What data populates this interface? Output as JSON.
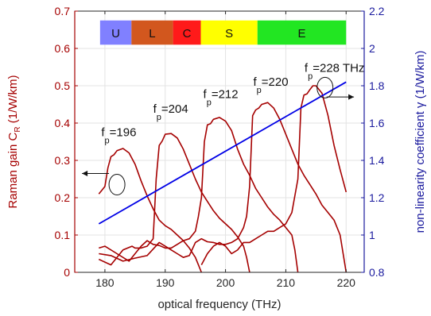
{
  "chart_data": {
    "type": "line",
    "xlabel": "optical frequency (THz)",
    "ylabel_left": "Raman gain C_R (1/W/km)",
    "ylabel_left_main": "Raman gain C",
    "ylabel_left_sub": "R",
    "ylabel_left_units": " (1/W/km)",
    "ylabel_right": "non-linearity coefficient γ (1/W/km)",
    "ylabel_right_main": "non-linearity coefficient γ",
    "ylabel_right_units": " (1/W/km)",
    "xlim": [
      175,
      223
    ],
    "ylim_left": [
      0,
      0.7
    ],
    "ylim_right": [
      0.8,
      2.2
    ],
    "xticks": [
      180,
      190,
      200,
      210,
      220
    ],
    "yticks_left": [
      0,
      0.1,
      0.2,
      0.3,
      0.4,
      0.5,
      0.6,
      0.7
    ],
    "yticks_left_labels": [
      "0",
      "0.1",
      "0.2",
      "0.3",
      "0.4",
      "0.5",
      "0.6",
      "0.7"
    ],
    "yticks_right": [
      0.8,
      1,
      1.2,
      1.4,
      1.6,
      1.8,
      2,
      2.2
    ],
    "yticks_right_labels": [
      "0.8",
      "1",
      "1.2",
      "1.4",
      "1.6",
      "1.8",
      "2",
      "2.2"
    ],
    "grid": true,
    "colors": {
      "raman": "#a50000",
      "gamma": "#0000e6",
      "left_axis": "#a50000",
      "right_axis": "#1a1a9e",
      "grid": "#e3e3e3"
    },
    "bands": [
      {
        "label": "U",
        "x0": 179.2,
        "x1": 184.4,
        "color": "#8080ff"
      },
      {
        "label": "L",
        "x0": 184.4,
        "x1": 191.3,
        "color": "#d2571e"
      },
      {
        "label": "C",
        "x0": 191.3,
        "x1": 195.9,
        "color": "#ff1a1a"
      },
      {
        "label": "S",
        "x0": 195.9,
        "x1": 205.3,
        "color": "#ffff00"
      },
      {
        "label": "E",
        "x0": 205.3,
        "x1": 220.0,
        "color": "#22e622"
      }
    ],
    "gamma_series": {
      "axis": "right",
      "x": [
        179,
        220
      ],
      "y": [
        1.06,
        1.82
      ]
    },
    "raman_series": [
      {
        "pump_label_main": "f",
        "pump_label_sub": "p",
        "pump_label_value": "=196",
        "annot_x": 179.4,
        "annot_y": 0.365,
        "x": [
          179,
          180,
          180.5,
          181,
          181.5,
          182,
          183,
          184,
          185,
          186,
          187,
          188,
          189,
          190,
          191,
          192,
          193,
          194,
          195,
          195.5,
          196
        ],
        "y": [
          0.21,
          0.23,
          0.28,
          0.31,
          0.315,
          0.326,
          0.332,
          0.32,
          0.29,
          0.245,
          0.205,
          0.17,
          0.14,
          0.125,
          0.115,
          0.1,
          0.085,
          0.065,
          0.04,
          0.02,
          0.0
        ]
      },
      {
        "pump_label_main": "f",
        "pump_label_sub": "p",
        "pump_label_value": "=204",
        "annot_x": 188.0,
        "annot_y": 0.428,
        "x": [
          179,
          181,
          183,
          184.5,
          185,
          186,
          187,
          188,
          188.5,
          189,
          189.5,
          190,
          191,
          192,
          193,
          194,
          195,
          196,
          197,
          198,
          199,
          200,
          201,
          202,
          203,
          203.5,
          204
        ],
        "y": [
          0.035,
          0.02,
          0.06,
          0.07,
          0.065,
          0.065,
          0.07,
          0.09,
          0.25,
          0.34,
          0.352,
          0.37,
          0.372,
          0.36,
          0.33,
          0.29,
          0.25,
          0.215,
          0.19,
          0.165,
          0.145,
          0.13,
          0.115,
          0.095,
          0.07,
          0.04,
          0.0
        ]
      },
      {
        "pump_label_main": "f",
        "pump_label_sub": "p",
        "pump_label_value": "=212",
        "annot_x": 196.3,
        "annot_y": 0.467,
        "x": [
          179,
          180,
          182,
          184,
          186,
          187,
          188,
          189,
          190,
          191,
          192,
          193,
          194,
          195,
          195.5,
          196,
          196.5,
          197,
          197.5,
          198,
          199,
          200,
          201,
          202,
          203,
          204,
          205,
          206,
          207,
          208,
          209,
          210,
          211,
          211.5,
          212
        ],
        "y": [
          0.065,
          0.07,
          0.05,
          0.03,
          0.07,
          0.085,
          0.075,
          0.072,
          0.065,
          0.065,
          0.075,
          0.085,
          0.09,
          0.11,
          0.15,
          0.2,
          0.35,
          0.395,
          0.398,
          0.41,
          0.415,
          0.405,
          0.38,
          0.33,
          0.29,
          0.26,
          0.225,
          0.2,
          0.175,
          0.155,
          0.14,
          0.12,
          0.1,
          0.06,
          0.0
        ]
      },
      {
        "pump_label_main": "f",
        "pump_label_sub": "p",
        "pump_label_value": "=220",
        "annot_x": 204.6,
        "annot_y": 0.5,
        "x": [
          179,
          181,
          183,
          185,
          187,
          189,
          190,
          191,
          192,
          193,
          194,
          195,
          196,
          197,
          198,
          199,
          200,
          201,
          202,
          203,
          203.5,
          204,
          204.5,
          205,
          205.5,
          206,
          207,
          208,
          209,
          210,
          211,
          212,
          213,
          214,
          215,
          216,
          217,
          218,
          219,
          219.5,
          220
        ],
        "y": [
          0.05,
          0.045,
          0.03,
          0.038,
          0.045,
          0.08,
          0.07,
          0.06,
          0.05,
          0.04,
          0.045,
          0.08,
          0.09,
          0.082,
          0.08,
          0.075,
          0.075,
          0.08,
          0.09,
          0.12,
          0.15,
          0.23,
          0.42,
          0.435,
          0.44,
          0.45,
          0.455,
          0.44,
          0.41,
          0.37,
          0.33,
          0.29,
          0.26,
          0.235,
          0.21,
          0.18,
          0.16,
          0.14,
          0.1,
          0.05,
          0.0
        ]
      },
      {
        "pump_label_main": "f",
        "pump_label_sub": "p",
        "pump_label_value": "=228 THz",
        "annot_x": 213.1,
        "annot_y": 0.537,
        "x": [
          196,
          197,
          198,
          199,
          200,
          201,
          202,
          203,
          204,
          205,
          206,
          207,
          208,
          209,
          210,
          211,
          212,
          212.5,
          213,
          213.5,
          214,
          214.5,
          215,
          216,
          217,
          218,
          219,
          220
        ],
        "y": [
          0.02,
          0.05,
          0.07,
          0.08,
          0.07,
          0.05,
          0.06,
          0.08,
          0.08,
          0.09,
          0.1,
          0.11,
          0.11,
          0.12,
          0.13,
          0.16,
          0.25,
          0.44,
          0.475,
          0.478,
          0.49,
          0.5,
          0.5,
          0.48,
          0.42,
          0.34,
          0.275,
          0.215
        ]
      }
    ]
  }
}
